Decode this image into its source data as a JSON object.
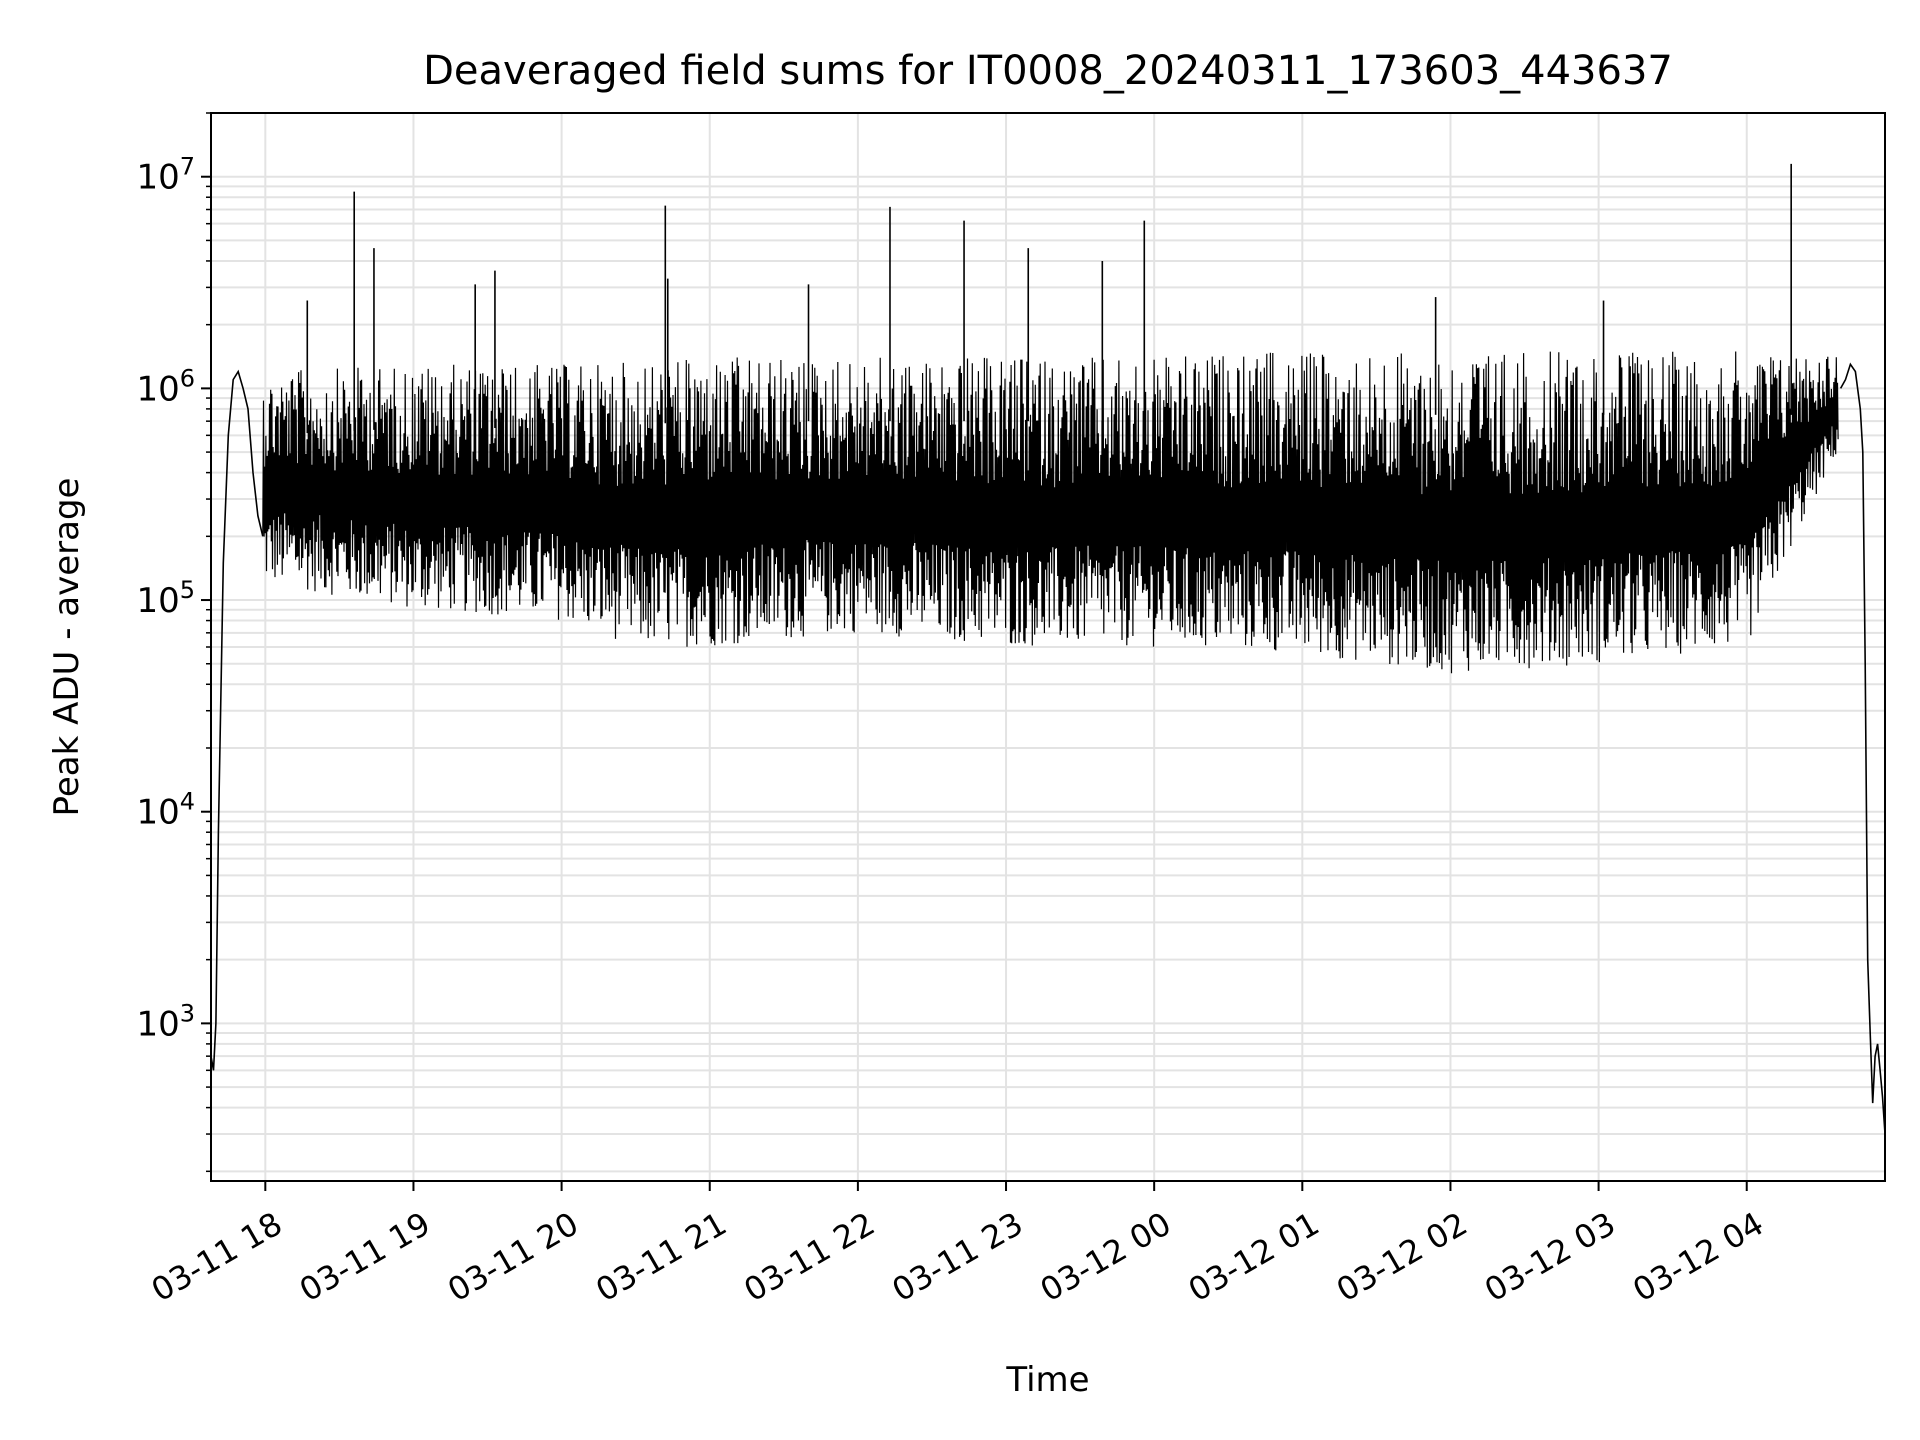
{
  "chart_data": {
    "type": "line",
    "title": "Deaveraged field sums for IT0008_20240311_173603_443637",
    "xlabel": "Time",
    "ylabel": "Peak ADU - average",
    "yscale": "log",
    "xlim": [
      "2024-03-11T17:38",
      "2024-03-12T04:56"
    ],
    "ylim": [
      180,
      20000000
    ],
    "grid": true,
    "x_ticks": [
      {
        "t": "2024-03-11T18:00",
        "label": "03-11 18"
      },
      {
        "t": "2024-03-11T19:00",
        "label": "03-11 19"
      },
      {
        "t": "2024-03-11T20:00",
        "label": "03-11 20"
      },
      {
        "t": "2024-03-11T21:00",
        "label": "03-11 21"
      },
      {
        "t": "2024-03-11T22:00",
        "label": "03-11 22"
      },
      {
        "t": "2024-03-11T23:00",
        "label": "03-11 23"
      },
      {
        "t": "2024-03-12T00:00",
        "label": "03-12 00"
      },
      {
        "t": "2024-03-12T01:00",
        "label": "03-12 01"
      },
      {
        "t": "2024-03-12T02:00",
        "label": "03-12 02"
      },
      {
        "t": "2024-03-12T03:00",
        "label": "03-12 03"
      },
      {
        "t": "2024-03-12T04:00",
        "label": "03-12 04"
      }
    ],
    "y_ticks": [
      {
        "v": 1000,
        "base": "10",
        "exp": "3"
      },
      {
        "v": 10000,
        "base": "10",
        "exp": "4"
      },
      {
        "v": 100000,
        "base": "10",
        "exp": "5"
      },
      {
        "v": 1000000,
        "base": "10",
        "exp": "6"
      },
      {
        "v": 10000000,
        "base": "10",
        "exp": "7"
      }
    ],
    "series": [
      {
        "color": "#000000",
        "x": [
          "2024-03-11T17:38",
          "2024-03-11T17:39",
          "2024-03-11T17:40",
          "2024-03-11T17:41",
          "2024-03-11T17:43",
          "2024-03-11T17:45",
          "2024-03-11T17:47",
          "2024-03-11T17:49",
          "2024-03-11T17:51",
          "2024-03-11T17:53",
          "2024-03-11T17:55",
          "2024-03-11T17:57",
          "2024-03-11T17:59"
        ],
        "y": [
          700,
          600,
          1000,
          8000,
          150000,
          600000,
          1100000,
          1200000,
          1000000,
          800000,
          400000,
          250000,
          200000
        ]
      },
      {
        "color": "#000000",
        "x": [
          "2024-03-12T04:38",
          "2024-03-12T04:40",
          "2024-03-12T04:42",
          "2024-03-12T04:44",
          "2024-03-12T04:46",
          "2024-03-12T04:47",
          "2024-03-12T04:48",
          "2024-03-12T04:49",
          "2024-03-12T04:50",
          "2024-03-12T04:51",
          "2024-03-12T04:52",
          "2024-03-12T04:53",
          "2024-03-12T04:54",
          "2024-03-12T04:55",
          "2024-03-12T04:56"
        ],
        "y": [
          1000000,
          1100000,
          1300000,
          1200000,
          800000,
          500000,
          50000,
          2000,
          900,
          420,
          700,
          800,
          600,
          450,
          300
        ]
      }
    ],
    "band": {
      "x_start": "2024-03-11T17:59",
      "x_end": "2024-03-12T04:37",
      "low": [
        [
          "2024-03-11T17:59",
          120000
        ],
        [
          "2024-03-11T19:00",
          90000
        ],
        [
          "2024-03-11T20:00",
          80000
        ],
        [
          "2024-03-11T20:30",
          60000
        ],
        [
          "2024-03-11T21:00",
          60000
        ],
        [
          "2024-03-11T22:00",
          70000
        ],
        [
          "2024-03-11T23:00",
          60000
        ],
        [
          "2024-03-12T00:00",
          60000
        ],
        [
          "2024-03-12T01:00",
          55000
        ],
        [
          "2024-03-12T02:00",
          45000
        ],
        [
          "2024-03-12T03:00",
          50000
        ],
        [
          "2024-03-12T04:00",
          60000
        ],
        [
          "2024-03-12T04:20",
          200000
        ],
        [
          "2024-03-12T04:37",
          500000
        ]
      ],
      "high": [
        [
          "2024-03-11T17:59",
          1200000
        ],
        [
          "2024-03-11T19:00",
          1300000
        ],
        [
          "2024-03-11T20:00",
          1300000
        ],
        [
          "2024-03-11T21:00",
          1400000
        ],
        [
          "2024-03-11T22:00",
          1400000
        ],
        [
          "2024-03-11T23:00",
          1400000
        ],
        [
          "2024-03-12T00:00",
          1400000
        ],
        [
          "2024-03-12T01:00",
          1500000
        ],
        [
          "2024-03-12T02:00",
          1500000
        ],
        [
          "2024-03-12T03:00",
          1500000
        ],
        [
          "2024-03-12T04:00",
          1500000
        ],
        [
          "2024-03-12T04:37",
          1500000
        ]
      ]
    },
    "spikes": [
      {
        "t": "2024-03-11T18:17",
        "y": 2600000
      },
      {
        "t": "2024-03-11T18:36",
        "y": 8500000
      },
      {
        "t": "2024-03-11T18:44",
        "y": 4600000
      },
      {
        "t": "2024-03-11T19:25",
        "y": 3100000
      },
      {
        "t": "2024-03-11T19:33",
        "y": 3600000
      },
      {
        "t": "2024-03-11T20:42",
        "y": 7300000
      },
      {
        "t": "2024-03-11T20:43",
        "y": 3300000
      },
      {
        "t": "2024-03-11T21:40",
        "y": 3100000
      },
      {
        "t": "2024-03-11T22:13",
        "y": 7200000
      },
      {
        "t": "2024-03-11T22:43",
        "y": 6200000
      },
      {
        "t": "2024-03-11T23:09",
        "y": 4600000
      },
      {
        "t": "2024-03-11T23:39",
        "y": 4000000
      },
      {
        "t": "2024-03-11T23:56",
        "y": 6200000
      },
      {
        "t": "2024-03-12T01:54",
        "y": 2700000
      },
      {
        "t": "2024-03-12T03:02",
        "y": 2600000
      },
      {
        "t": "2024-03-12T04:18",
        "y": 11500000
      }
    ]
  }
}
